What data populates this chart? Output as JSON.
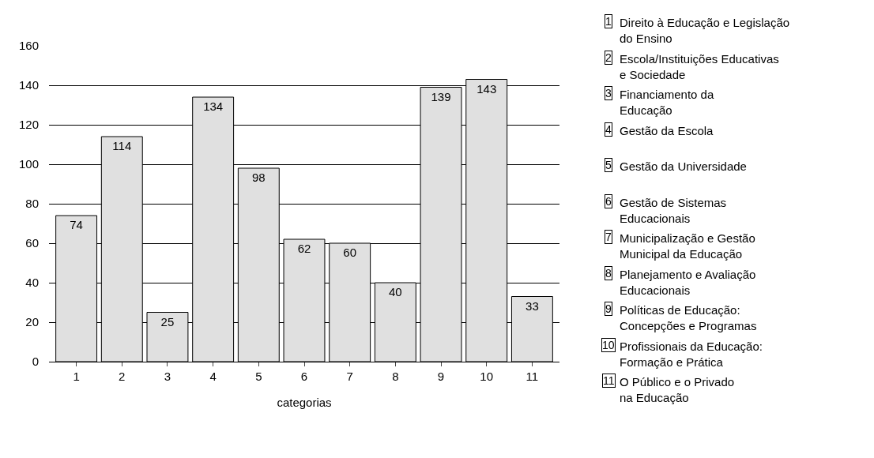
{
  "chart_data": {
    "type": "bar",
    "xlabel": "categorias",
    "categories": [
      "1",
      "2",
      "3",
      "4",
      "5",
      "6",
      "7",
      "8",
      "9",
      "10",
      "11"
    ],
    "values": [
      74,
      114,
      25,
      134,
      98,
      62,
      60,
      40,
      139,
      143,
      33
    ],
    "color": "#e0e0e0",
    "data_labels": true,
    "grid": "y",
    "ylim": [
      0,
      160
    ],
    "yticks": [
      0,
      20,
      40,
      60,
      80,
      100,
      120,
      140,
      160
    ],
    "annotations": [
      "1 Direito à Educação e Legislação\ndo Ensino",
      "2 Escola/Instituições Educativas\ne Sociedade",
      "3 Financiamento da\nEducação",
      "4 Gestão da Escola",
      "5 Gestão da Universidade",
      "6 Gestão de Sistemas\nEducacionais",
      "7 Municipalização e Gestão\nMunicipal da Educação",
      "8 Planejamento e Avaliação\nEducacionais",
      "9 Políticas de Educação:\nConcepções e Programas",
      "10 Profissionais da Educação:\nFormação e Prática",
      "11 O Público e o Privado\nna Educação"
    ]
  }
}
